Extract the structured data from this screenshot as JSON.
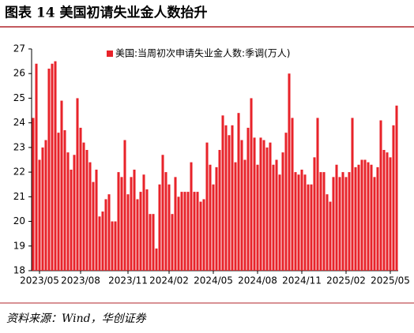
{
  "chart_data": {
    "type": "bar",
    "title": "图表 14   美国初请失业金人数抬升",
    "source": "资料来源：Wind，华创证券",
    "categories": [
      null,
      null,
      "2023/05",
      null,
      null,
      null,
      null,
      null,
      null,
      null,
      null,
      null,
      null,
      null,
      null,
      "2023/08",
      null,
      null,
      null,
      null,
      null,
      null,
      null,
      null,
      null,
      null,
      null,
      null,
      null,
      null,
      "2023/11",
      null,
      null,
      null,
      null,
      null,
      null,
      null,
      null,
      null,
      null,
      null,
      null,
      "2024/02",
      null,
      null,
      null,
      null,
      null,
      null,
      null,
      null,
      null,
      null,
      null,
      null,
      null,
      "2024/05",
      null,
      null,
      null,
      null,
      null,
      null,
      null,
      null,
      null,
      null,
      null,
      null,
      null,
      "2024/08",
      null,
      null,
      null,
      null,
      null,
      null,
      null,
      null,
      null,
      null,
      null,
      null,
      null,
      "2024/11",
      null,
      null,
      null,
      null,
      null,
      null,
      null,
      null,
      null,
      null,
      null,
      null,
      null,
      "2025/02",
      null,
      null,
      null,
      null,
      null,
      null,
      null,
      null,
      null,
      null,
      null,
      null,
      null,
      "2025/05",
      null,
      null
    ],
    "series": [
      {
        "name": "美国:当周初次申请失业金人数:季调(万人)",
        "color": "#e8232a",
        "values": [
          24.2,
          26.4,
          22.5,
          23.0,
          23.3,
          26.2,
          26.4,
          26.5,
          23.6,
          24.9,
          23.7,
          22.8,
          22.1,
          22.7,
          25.0,
          23.8,
          23.2,
          22.9,
          22.4,
          21.6,
          22.1,
          20.2,
          20.4,
          20.9,
          21.1,
          20.0,
          20.0,
          22.0,
          21.8,
          23.3,
          21.1,
          21.8,
          22.1,
          20.9,
          21.2,
          21.9,
          21.3,
          20.3,
          20.3,
          18.9,
          21.5,
          22.7,
          22.0,
          21.5,
          20.3,
          21.8,
          21.0,
          21.2,
          21.2,
          21.2,
          22.4,
          21.2,
          21.2,
          20.8,
          20.9,
          23.2,
          22.3,
          21.5,
          22.2,
          22.9,
          24.3,
          23.9,
          23.5,
          23.9,
          22.4,
          24.4,
          23.3,
          22.5,
          23.8,
          25.0,
          23.4,
          22.3,
          23.4,
          23.3,
          23.0,
          23.2,
          22.3,
          22.5,
          21.9,
          22.8,
          23.6,
          26.0,
          24.2,
          22.0,
          21.9,
          22.1,
          21.9,
          21.5,
          21.5,
          22.6,
          24.2,
          22.0,
          22.0,
          21.1,
          20.8,
          21.8,
          22.3,
          21.8,
          22.0,
          21.8,
          22.0,
          24.2,
          22.2,
          22.3,
          22.5,
          22.5,
          22.4,
          22.3,
          21.8,
          22.2,
          24.1,
          22.9,
          22.8,
          22.6,
          23.9,
          24.7
        ]
      }
    ],
    "ylim": [
      18,
      27
    ],
    "yticks": [
      18,
      19,
      20,
      21,
      22,
      23,
      24,
      25,
      26,
      27
    ],
    "grid": false,
    "legend": "top-left"
  }
}
